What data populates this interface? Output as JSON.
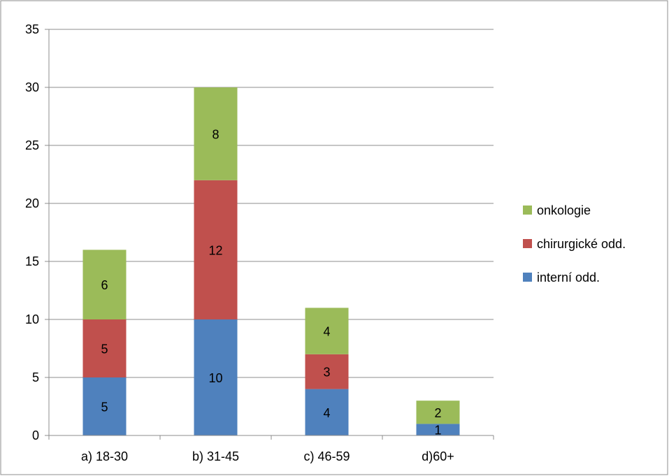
{
  "chart_data": {
    "type": "bar",
    "stacked": true,
    "categories": [
      "a) 18-30",
      "b) 31-45",
      "c) 46-59",
      "d)60+"
    ],
    "series": [
      {
        "name": "interní odd.",
        "color": "#4f81bd",
        "values": [
          5,
          10,
          4,
          1
        ]
      },
      {
        "name": "chirurgické odd.",
        "color": "#c0504d",
        "values": [
          5,
          12,
          3,
          0
        ]
      },
      {
        "name": "onkologie",
        "color": "#9bbb59",
        "values": [
          6,
          8,
          4,
          2
        ]
      }
    ],
    "data_labels": [
      [
        "5",
        "10",
        "4",
        "1"
      ],
      [
        "5",
        "12",
        "3",
        ""
      ],
      [
        "6",
        "8",
        "4",
        "2"
      ]
    ],
    "ylim": [
      0,
      35
    ],
    "yticks": [
      "0",
      "5",
      "10",
      "15",
      "20",
      "25",
      "30",
      "35"
    ],
    "grid": true,
    "legend_position": "right",
    "legend_order": [
      "onkologie",
      "chirurgické odd.",
      "interní odd."
    ],
    "title": "",
    "xlabel": "",
    "ylabel": ""
  }
}
